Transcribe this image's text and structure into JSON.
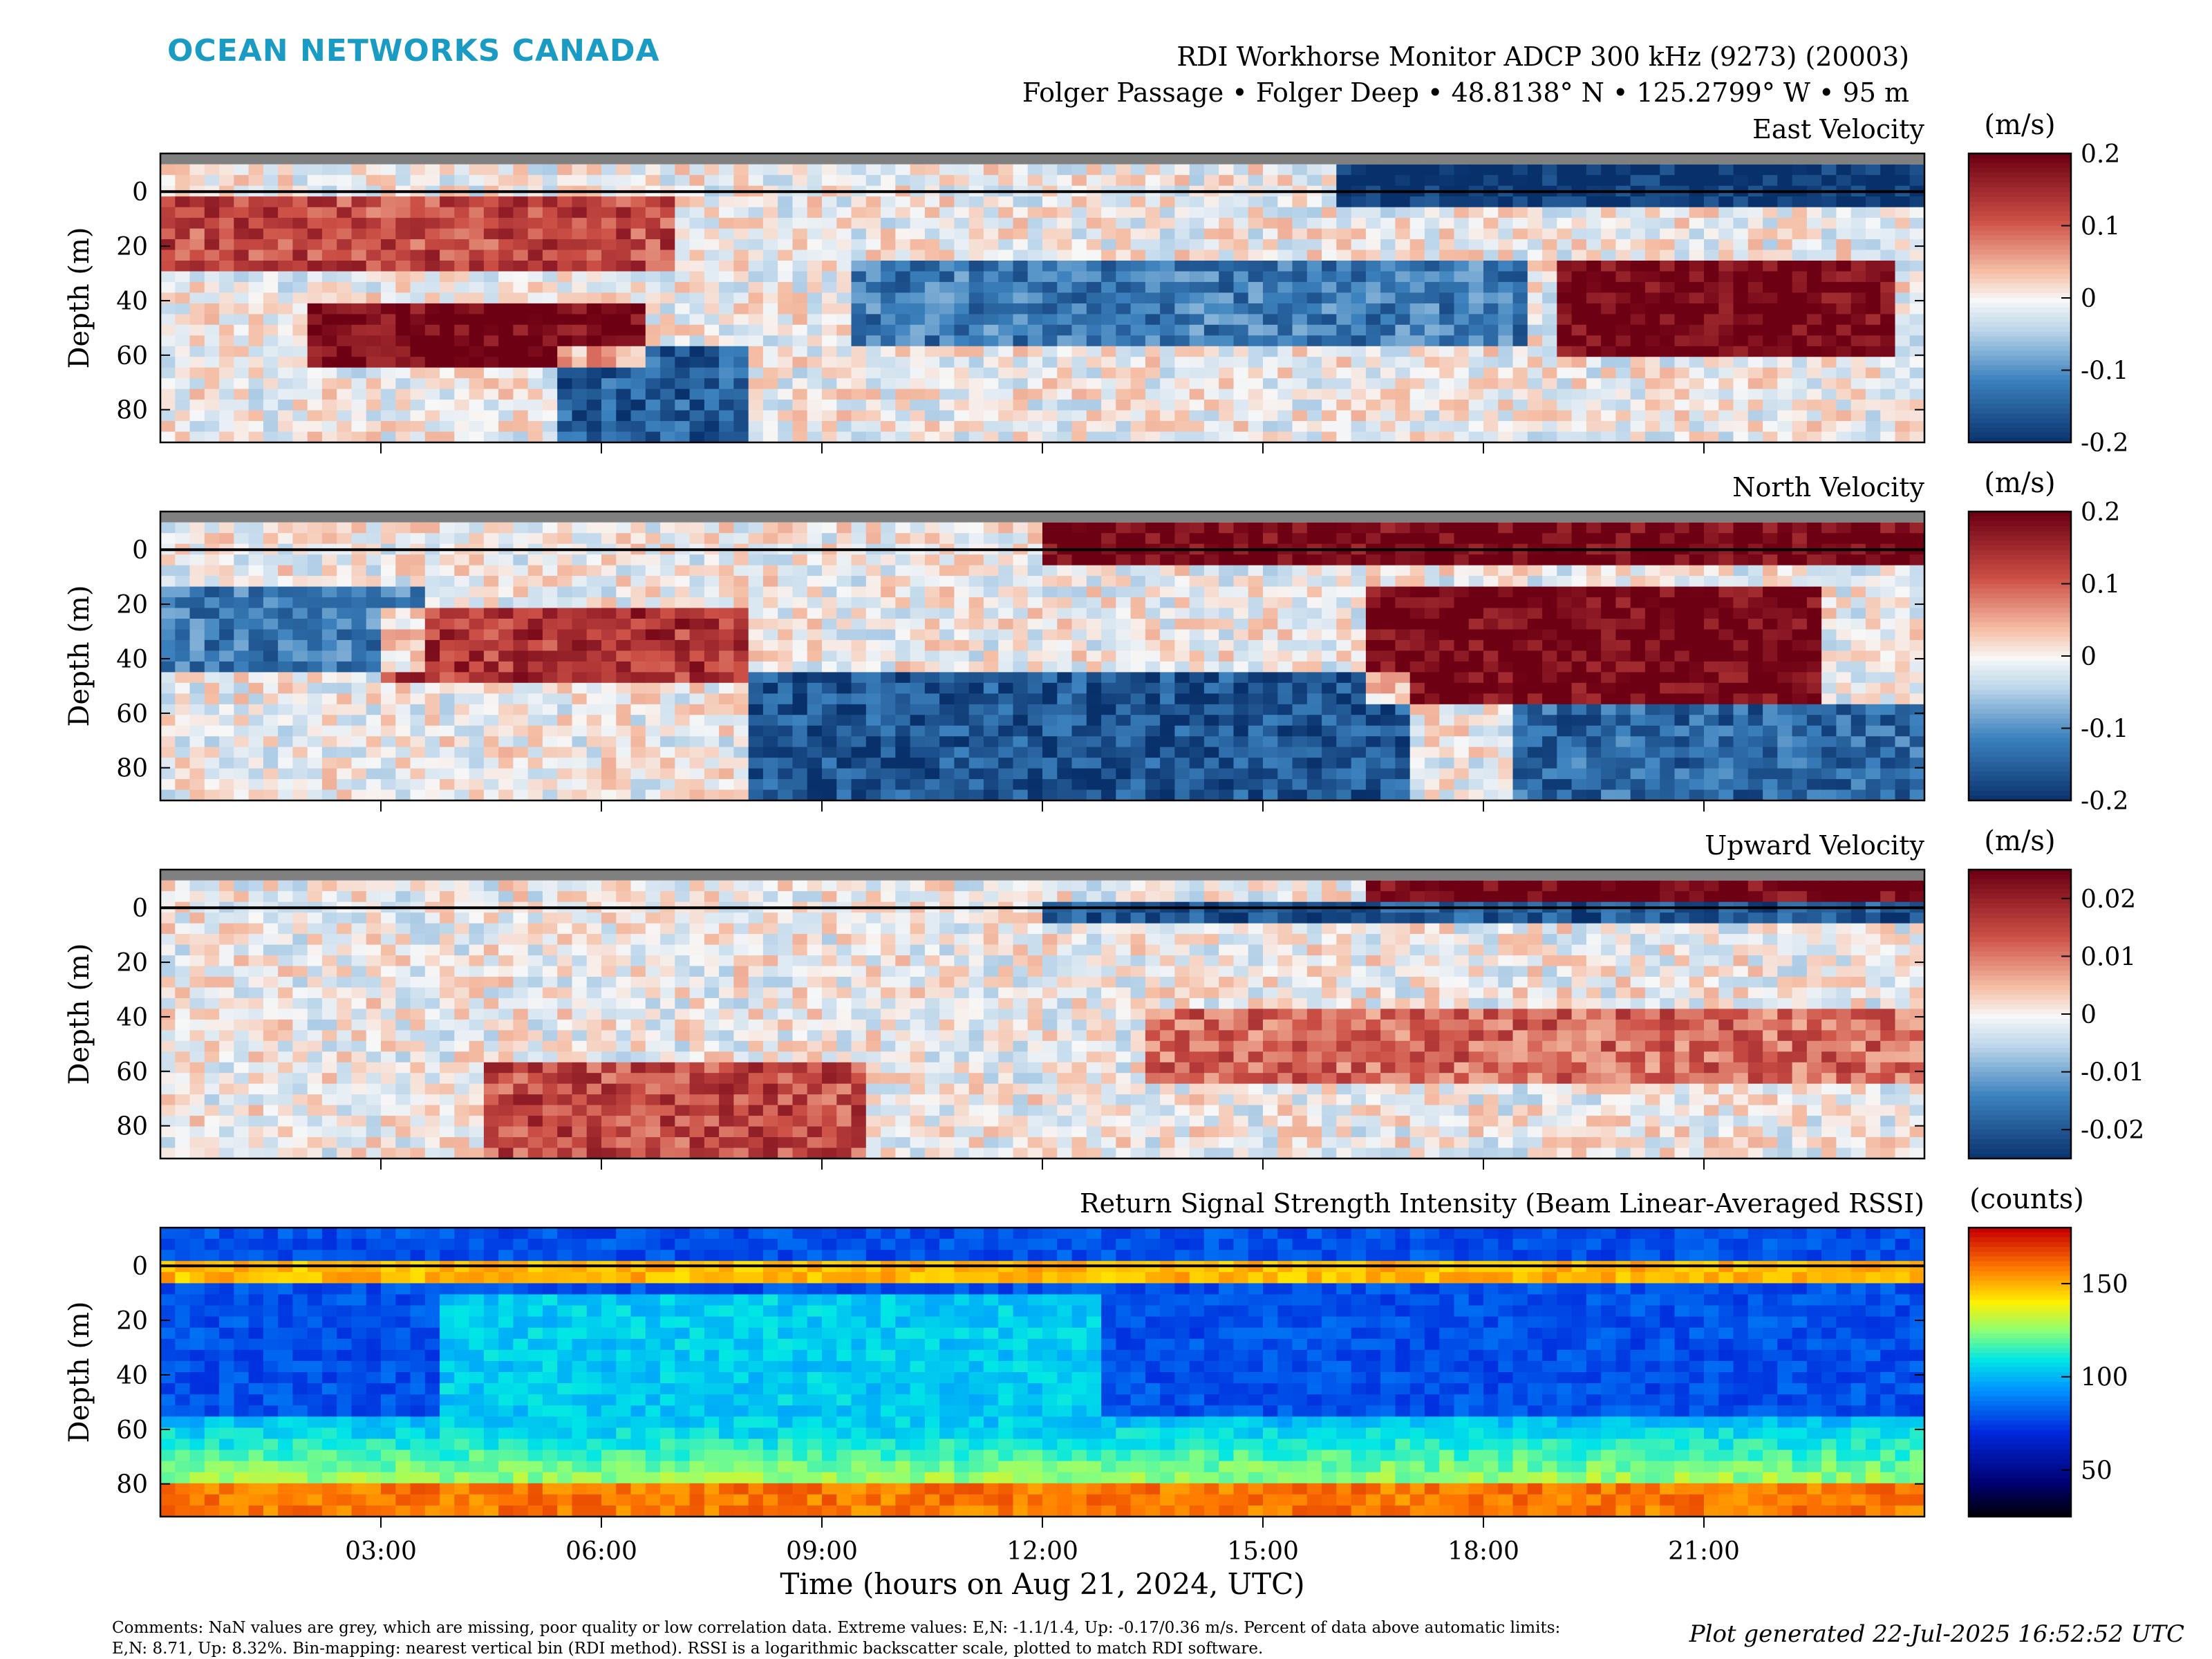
{
  "header": {
    "logo": "OCEAN NETWORKS CANADA",
    "title": "RDI Workhorse Monitor ADCP 300 kHz (9273) (20003)",
    "subtitle": "Folger Passage • Folger Deep • 48.8138° N • 125.2799° W • 95 m"
  },
  "chart_data": [
    {
      "type": "heatmap",
      "title": "East Velocity",
      "ylabel": "Depth (m)",
      "yticks": [
        0,
        20,
        40,
        60,
        80
      ],
      "ylim": [
        92,
        -14
      ],
      "xlim": [
        0,
        24
      ],
      "colorbar": {
        "unit": "(m/s)",
        "ticks": [
          "0.2",
          "0.1",
          "0",
          "-0.1",
          "-0.2"
        ],
        "range": [
          -0.2,
          0.2
        ],
        "colormap": "red-white-blue"
      },
      "features": [
        {
          "desc": "eastward upper layer early",
          "t": [
            0,
            7
          ],
          "depth": [
            0,
            30
          ],
          "value": 0.12
        },
        {
          "desc": "strong eastward core",
          "t": [
            2,
            6.5
          ],
          "depth": [
            40,
            65
          ],
          "value": 0.2
        },
        {
          "desc": "westward deep plume",
          "t": [
            5.5,
            8
          ],
          "depth": [
            55,
            92
          ],
          "value": -0.15
        },
        {
          "desc": "westward band",
          "t": [
            9.5,
            18.5
          ],
          "depth": [
            25,
            55
          ],
          "value": -0.12
        },
        {
          "desc": "surface westward",
          "t": [
            16,
            24
          ],
          "depth": [
            -10,
            5
          ],
          "value": -0.2
        },
        {
          "desc": "strong eastward late",
          "t": [
            19,
            23.5
          ],
          "depth": [
            25,
            60
          ],
          "value": 0.2
        }
      ]
    },
    {
      "type": "heatmap",
      "title": "North Velocity",
      "ylabel": "Depth (m)",
      "yticks": [
        0,
        20,
        40,
        60,
        80
      ],
      "ylim": [
        92,
        -14
      ],
      "xlim": [
        0,
        24
      ],
      "colorbar": {
        "unit": "(m/s)",
        "ticks": [
          "0.2",
          "0.1",
          "0",
          "-0.1",
          "-0.2"
        ],
        "range": [
          -0.2,
          0.2
        ],
        "colormap": "red-white-blue"
      },
      "features": [
        {
          "desc": "southward upper-left",
          "t": [
            0,
            3.5
          ],
          "depth": [
            15,
            45
          ],
          "value": -0.12
        },
        {
          "desc": "northward band",
          "t": [
            3,
            8
          ],
          "depth": [
            20,
            50
          ],
          "value": 0.14
        },
        {
          "desc": "southward deep",
          "t": [
            8,
            17
          ],
          "depth": [
            45,
            92
          ],
          "value": -0.16
        },
        {
          "desc": "surface northward",
          "t": [
            12,
            24
          ],
          "depth": [
            -10,
            5
          ],
          "value": 0.2
        },
        {
          "desc": "strong northward core",
          "t": [
            16.5,
            22.5
          ],
          "depth": [
            15,
            55
          ],
          "value": 0.2
        },
        {
          "desc": "southward deep late",
          "t": [
            18.5,
            24
          ],
          "depth": [
            55,
            92
          ],
          "value": -0.14
        }
      ]
    },
    {
      "type": "heatmap",
      "title": "Upward Velocity",
      "ylabel": "Depth (m)",
      "yticks": [
        0,
        20,
        40,
        60,
        80
      ],
      "ylim": [
        92,
        -14
      ],
      "xlim": [
        0,
        24
      ],
      "colorbar": {
        "unit": "(m/s)",
        "ticks": [
          "0.02",
          "0.01",
          "0",
          "-0.01",
          "-0.02"
        ],
        "range": [
          -0.025,
          0.025
        ],
        "colormap": "red-white-blue"
      },
      "features": [
        {
          "desc": "upward deep early",
          "t": [
            4.5,
            9.5
          ],
          "depth": [
            55,
            92
          ],
          "value": 0.015
        },
        {
          "desc": "upward band",
          "t": [
            13.5,
            24
          ],
          "depth": [
            38,
            65
          ],
          "value": 0.012
        },
        {
          "desc": "surface upward",
          "t": [
            16.5,
            24
          ],
          "depth": [
            -10,
            -2
          ],
          "value": 0.025
        },
        {
          "desc": "surface downward",
          "t": [
            12,
            24
          ],
          "depth": [
            -2,
            6
          ],
          "value": -0.02
        }
      ]
    },
    {
      "type": "heatmap",
      "title": "Return Signal Strength Intensity (Beam Linear-Averaged RSSI)",
      "ylabel": "Depth (m)",
      "xlabel": "Time (hours on Aug 21, 2024, UTC)",
      "xticks": [
        "03:00",
        "06:00",
        "09:00",
        "12:00",
        "15:00",
        "18:00",
        "21:00"
      ],
      "xtick_hours": [
        3,
        6,
        9,
        12,
        15,
        18,
        21
      ],
      "yticks": [
        0,
        20,
        40,
        60,
        80
      ],
      "ylim": [
        92,
        -14
      ],
      "xlim": [
        0,
        24
      ],
      "colorbar": {
        "unit": "(counts)",
        "ticks": [
          "150",
          "100",
          "50"
        ],
        "range": [
          25,
          180
        ],
        "colormap": "jet"
      },
      "features": [
        {
          "desc": "low backscatter upper",
          "t": [
            0,
            24
          ],
          "depth": [
            8,
            40
          ],
          "value": 65
        },
        {
          "desc": "elevated mid-column",
          "t": [
            3.8,
            12.8
          ],
          "depth": [
            10,
            92
          ],
          "value": 105
        },
        {
          "desc": "near-bottom strong return",
          "t": [
            0,
            24
          ],
          "depth": [
            78,
            92
          ],
          "value": 160
        },
        {
          "desc": "surface reflection",
          "t": [
            0,
            24
          ],
          "depth": [
            -2,
            6
          ],
          "value": 150
        }
      ]
    }
  ],
  "footer": {
    "comments": "Comments: NaN values are grey, which are missing, poor quality or low correlation data. Extreme values: E,N: -1.1/1.4, Up: -0.17/0.36 m/s. Percent of data above automatic limits: E,N: 8.71, Up: 8.32%. Bin-mapping: nearest vertical bin (RDI method). RSSI is a logarithmic backscatter scale, plotted to match RDI software.",
    "generated": "Plot generated 22-Jul-2025 16:52:52 UTC"
  },
  "colors": {
    "logo": "#1a9bc4",
    "nan": "#808080",
    "surface_line": "#000000"
  }
}
